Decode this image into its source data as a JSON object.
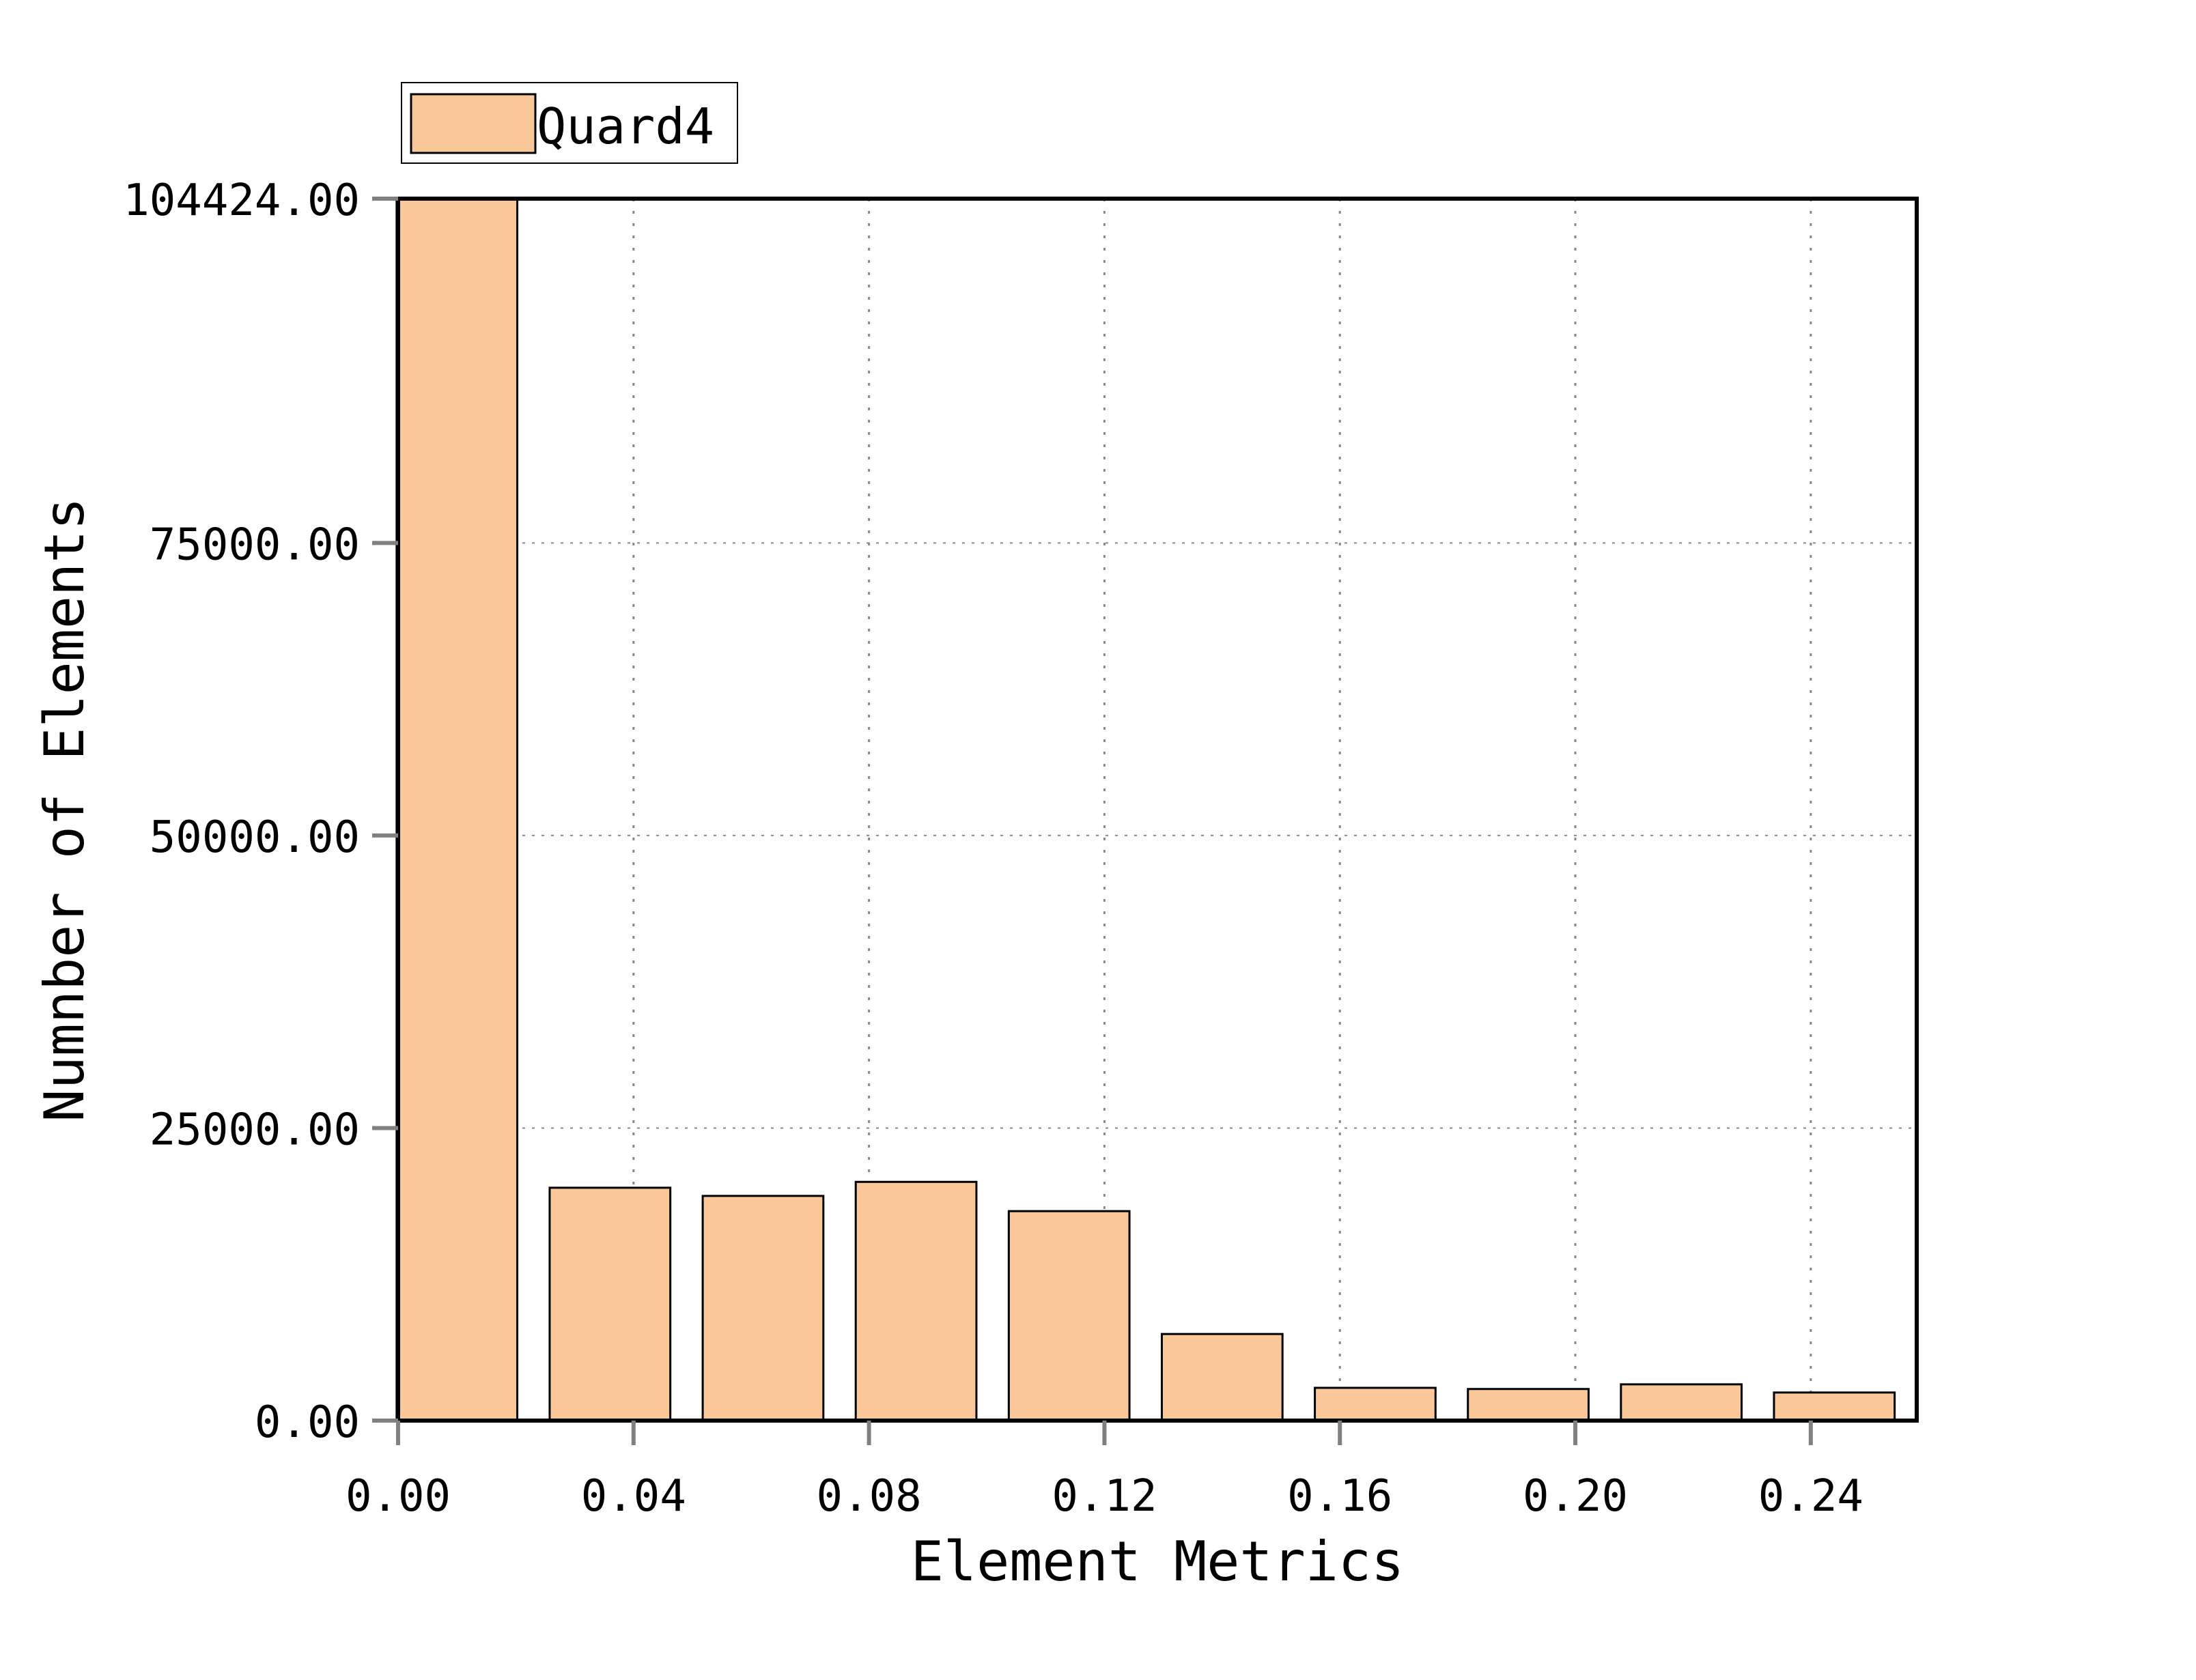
{
  "chart_data": {
    "type": "bar",
    "x": [
      0.01,
      0.036,
      0.062,
      0.088,
      0.114,
      0.14,
      0.166,
      0.192,
      0.218,
      0.244
    ],
    "values": [
      104424,
      19900,
      19200,
      20400,
      17900,
      7400,
      2800,
      2700,
      3100,
      2400
    ],
    "bar_width": 0.0205,
    "series": [
      {
        "name": "Quard4"
      }
    ],
    "xlabel": "Element Metrics",
    "ylabel": "Numnber of Elements",
    "xlim": [
      0.0,
      0.258
    ],
    "ylim": [
      0,
      104424
    ],
    "xticks": [
      0.0,
      0.04,
      0.08,
      0.12,
      0.16,
      0.2,
      0.24
    ],
    "xtick_labels": [
      "0.00",
      "0.04",
      "0.08",
      "0.12",
      "0.16",
      "0.20",
      "0.24"
    ],
    "yticks": [
      0,
      25000,
      50000,
      75000,
      104424
    ],
    "ytick_labels": [
      "0.00",
      "25000.00",
      "50000.00",
      "75000.00",
      "104424.00"
    ],
    "grid": true,
    "legend_position": "top-left outside",
    "colors": {
      "bar_fill": "#FAC898",
      "bar_edge": "#000000",
      "grid": "#888888",
      "axis": "#000000",
      "tick": "#808080"
    }
  }
}
